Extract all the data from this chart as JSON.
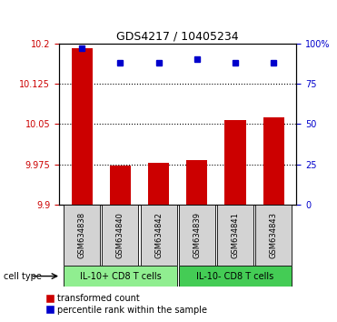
{
  "title": "GDS4217 / 10405234",
  "samples": [
    "GSM634838",
    "GSM634840",
    "GSM634842",
    "GSM634839",
    "GSM634841",
    "GSM634843"
  ],
  "red_values": [
    10.192,
    9.972,
    9.977,
    9.983,
    10.057,
    10.063
  ],
  "blue_values": [
    97,
    88,
    88,
    90,
    88,
    88
  ],
  "ylim_left": [
    9.9,
    10.2
  ],
  "ylim_right": [
    0,
    100
  ],
  "yticks_left": [
    9.9,
    9.975,
    10.05,
    10.125,
    10.2
  ],
  "yticks_right": [
    0,
    25,
    50,
    75,
    100
  ],
  "ytick_labels_left": [
    "9.9",
    "9.975",
    "10.05",
    "10.125",
    "10.2"
  ],
  "ytick_labels_right": [
    "0",
    "25",
    "50",
    "75",
    "100%"
  ],
  "groups": [
    {
      "label": "IL-10+ CD8 T cells",
      "start": 0,
      "end": 2,
      "color": "#90EE90"
    },
    {
      "label": "IL-10- CD8 T cells",
      "start": 3,
      "end": 5,
      "color": "#44CC55"
    }
  ],
  "group_label": "cell type",
  "bar_color": "#CC0000",
  "dot_color": "#0000CC",
  "legend_red_label": "transformed count",
  "legend_blue_label": "percentile rank within the sample",
  "bar_width": 0.55,
  "ybase": 9.9,
  "gridlines": [
    9.975,
    10.05,
    10.125
  ]
}
